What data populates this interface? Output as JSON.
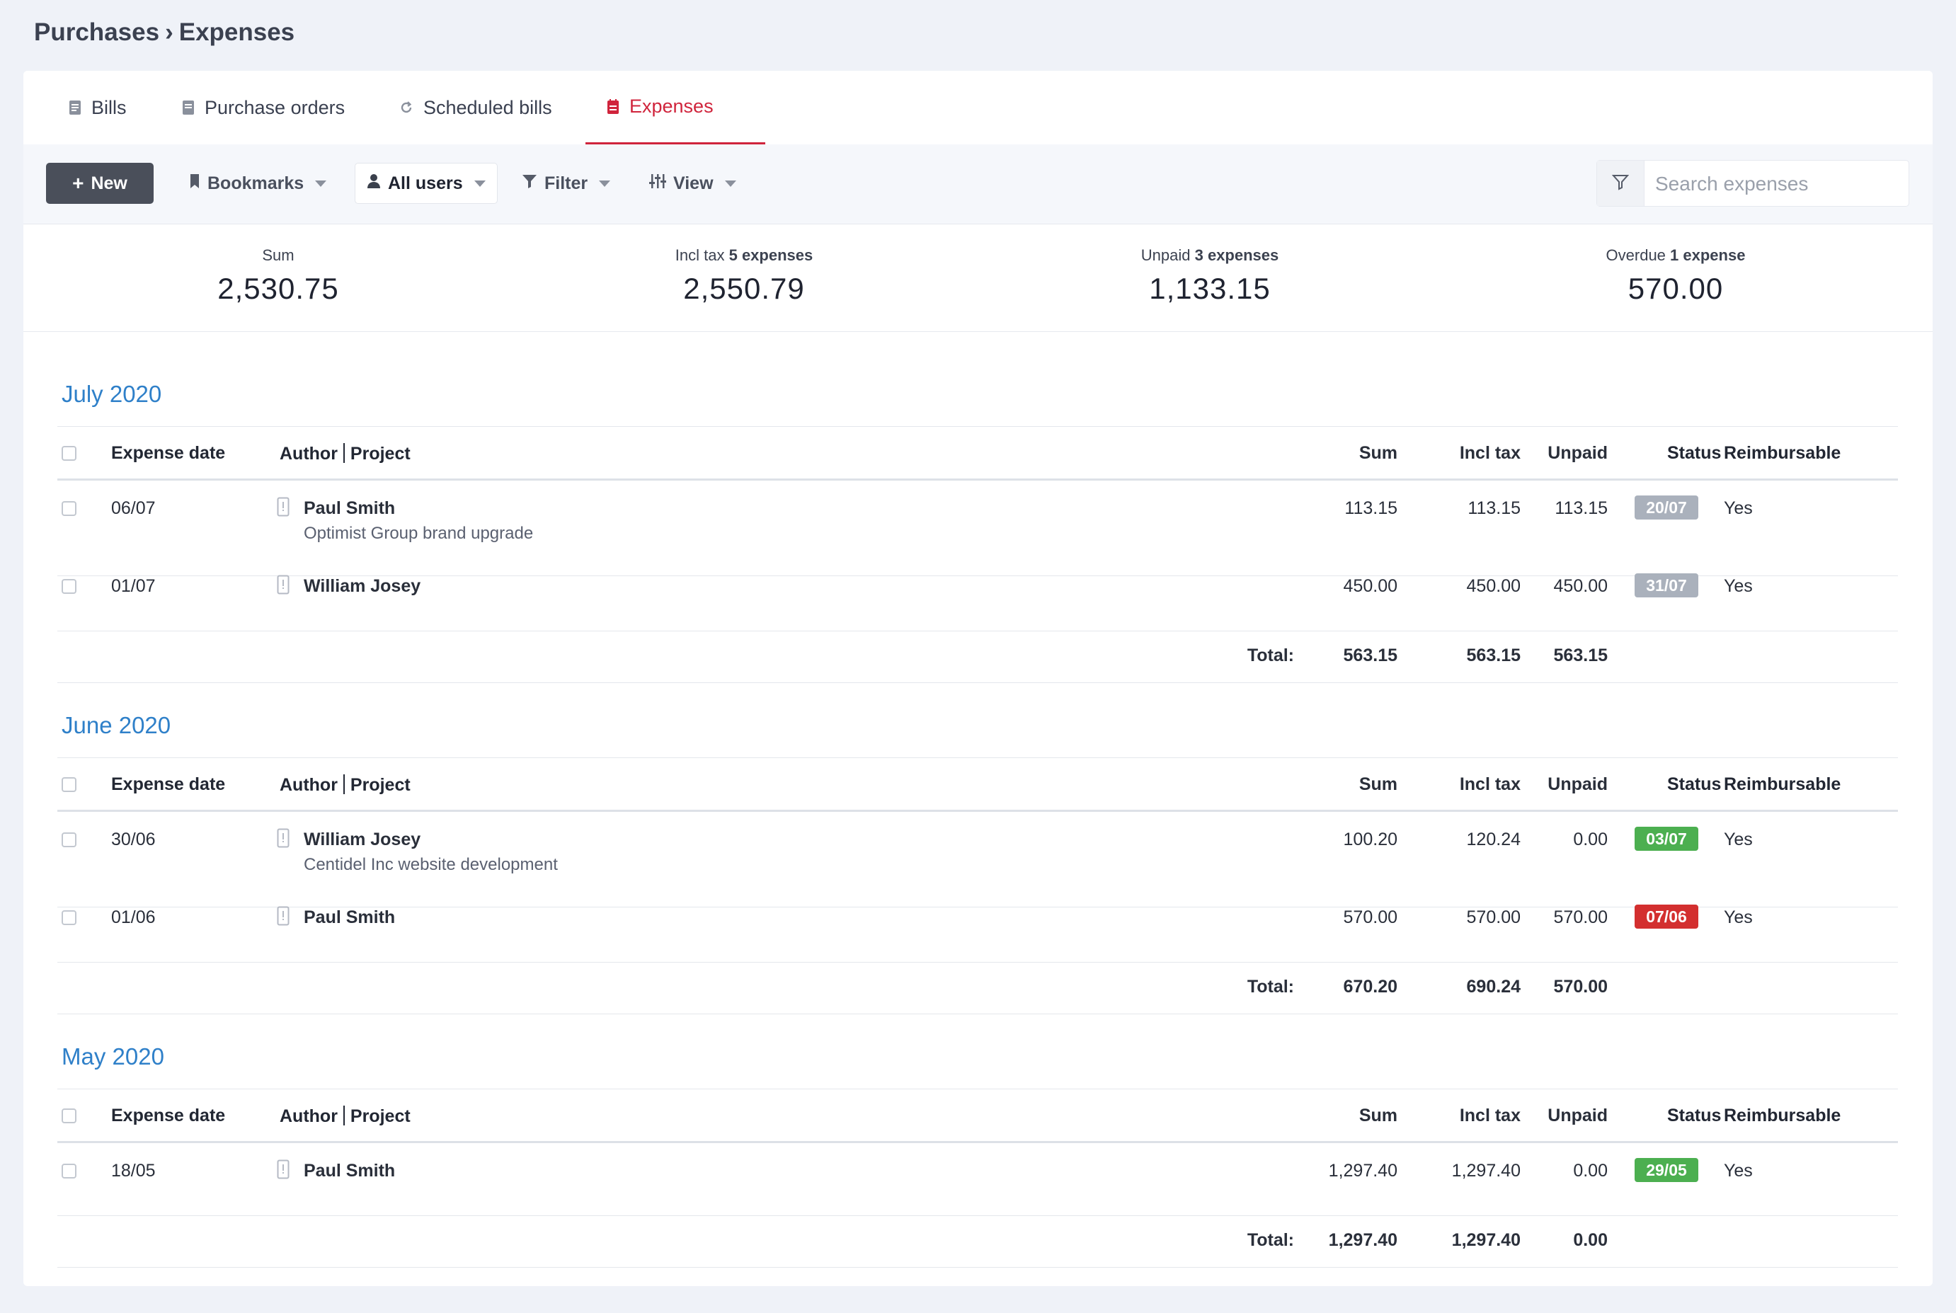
{
  "breadcrumb": {
    "parent": "Purchases",
    "separator": "›",
    "current": "Expenses"
  },
  "tabs": [
    {
      "label": "Bills",
      "icon": "bills-icon"
    },
    {
      "label": "Purchase orders",
      "icon": "purchase-order-icon"
    },
    {
      "label": "Scheduled bills",
      "icon": "refresh-icon"
    },
    {
      "label": "Expenses",
      "icon": "expenses-icon",
      "active": true
    }
  ],
  "toolbar": {
    "new_label": "New",
    "bookmarks_label": "Bookmarks",
    "users_label": "All users",
    "filter_label": "Filter",
    "view_label": "View",
    "search_placeholder": "Search expenses"
  },
  "summary": {
    "sum": {
      "label": "Sum",
      "value": "2,530.75"
    },
    "incl_tax": {
      "label": "Incl tax",
      "count": "5 expenses",
      "value": "2,550.79"
    },
    "unpaid": {
      "label": "Unpaid",
      "count": "3 expenses",
      "value": "1,133.15"
    },
    "overdue": {
      "label": "Overdue",
      "count": "1 expense",
      "value": "570.00"
    }
  },
  "columns": {
    "date": "Expense date",
    "author": "Author",
    "project": "Project",
    "sum": "Sum",
    "incl_tax": "Incl tax",
    "unpaid": "Unpaid",
    "status": "Status",
    "reimbursable": "Reimbursable"
  },
  "total_label": "Total:",
  "colors": {
    "grey": "#aab1bc",
    "green": "#4caf50",
    "red": "#d32f2f",
    "accent": "#2f80c9",
    "tab_active": "#d0243c"
  },
  "months": [
    {
      "title": "July 2020",
      "rows": [
        {
          "date": "06/07",
          "author": "Paul Smith",
          "project": "Optimist Group brand upgrade",
          "sum": "113.15",
          "incl_tax": "113.15",
          "unpaid": "113.15",
          "status": "20/07",
          "status_color": "grey",
          "reimbursable": "Yes"
        },
        {
          "date": "01/07",
          "author": "William Josey",
          "project": "",
          "sum": "450.00",
          "incl_tax": "450.00",
          "unpaid": "450.00",
          "status": "31/07",
          "status_color": "grey",
          "reimbursable": "Yes"
        }
      ],
      "totals": {
        "sum": "563.15",
        "incl_tax": "563.15",
        "unpaid": "563.15"
      }
    },
    {
      "title": "June 2020",
      "rows": [
        {
          "date": "30/06",
          "author": "William Josey",
          "project": "Centidel Inc website development",
          "sum": "100.20",
          "incl_tax": "120.24",
          "unpaid": "0.00",
          "status": "03/07",
          "status_color": "green",
          "reimbursable": "Yes"
        },
        {
          "date": "01/06",
          "author": "Paul Smith",
          "project": "",
          "sum": "570.00",
          "incl_tax": "570.00",
          "unpaid": "570.00",
          "status": "07/06",
          "status_color": "red",
          "reimbursable": "Yes"
        }
      ],
      "totals": {
        "sum": "670.20",
        "incl_tax": "690.24",
        "unpaid": "570.00"
      }
    },
    {
      "title": "May 2020",
      "rows": [
        {
          "date": "18/05",
          "author": "Paul Smith",
          "project": "",
          "sum": "1,297.40",
          "incl_tax": "1,297.40",
          "unpaid": "0.00",
          "status": "29/05",
          "status_color": "green",
          "reimbursable": "Yes"
        }
      ],
      "totals": {
        "sum": "1,297.40",
        "incl_tax": "1,297.40",
        "unpaid": "0.00"
      }
    }
  ]
}
